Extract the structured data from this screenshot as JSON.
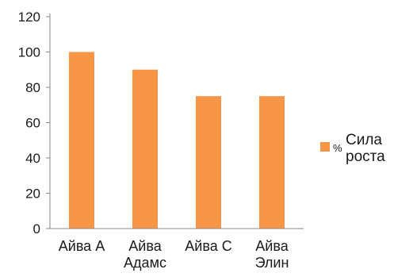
{
  "chart_data": {
    "type": "bar",
    "categories": [
      [
        "Айва А"
      ],
      [
        "Айва",
        "Адамс"
      ],
      [
        "Айва С"
      ],
      [
        "Айва",
        "Элин"
      ]
    ],
    "series": [
      {
        "name_parts": [
          "%",
          "Сила",
          "роста"
        ],
        "values": [
          100,
          90,
          75,
          75
        ],
        "color": "#F79646"
      }
    ],
    "ylim": [
      0,
      120
    ],
    "y_ticks": [
      0,
      20,
      40,
      60,
      80,
      100,
      120
    ],
    "grid": false,
    "legend_position": "right"
  }
}
